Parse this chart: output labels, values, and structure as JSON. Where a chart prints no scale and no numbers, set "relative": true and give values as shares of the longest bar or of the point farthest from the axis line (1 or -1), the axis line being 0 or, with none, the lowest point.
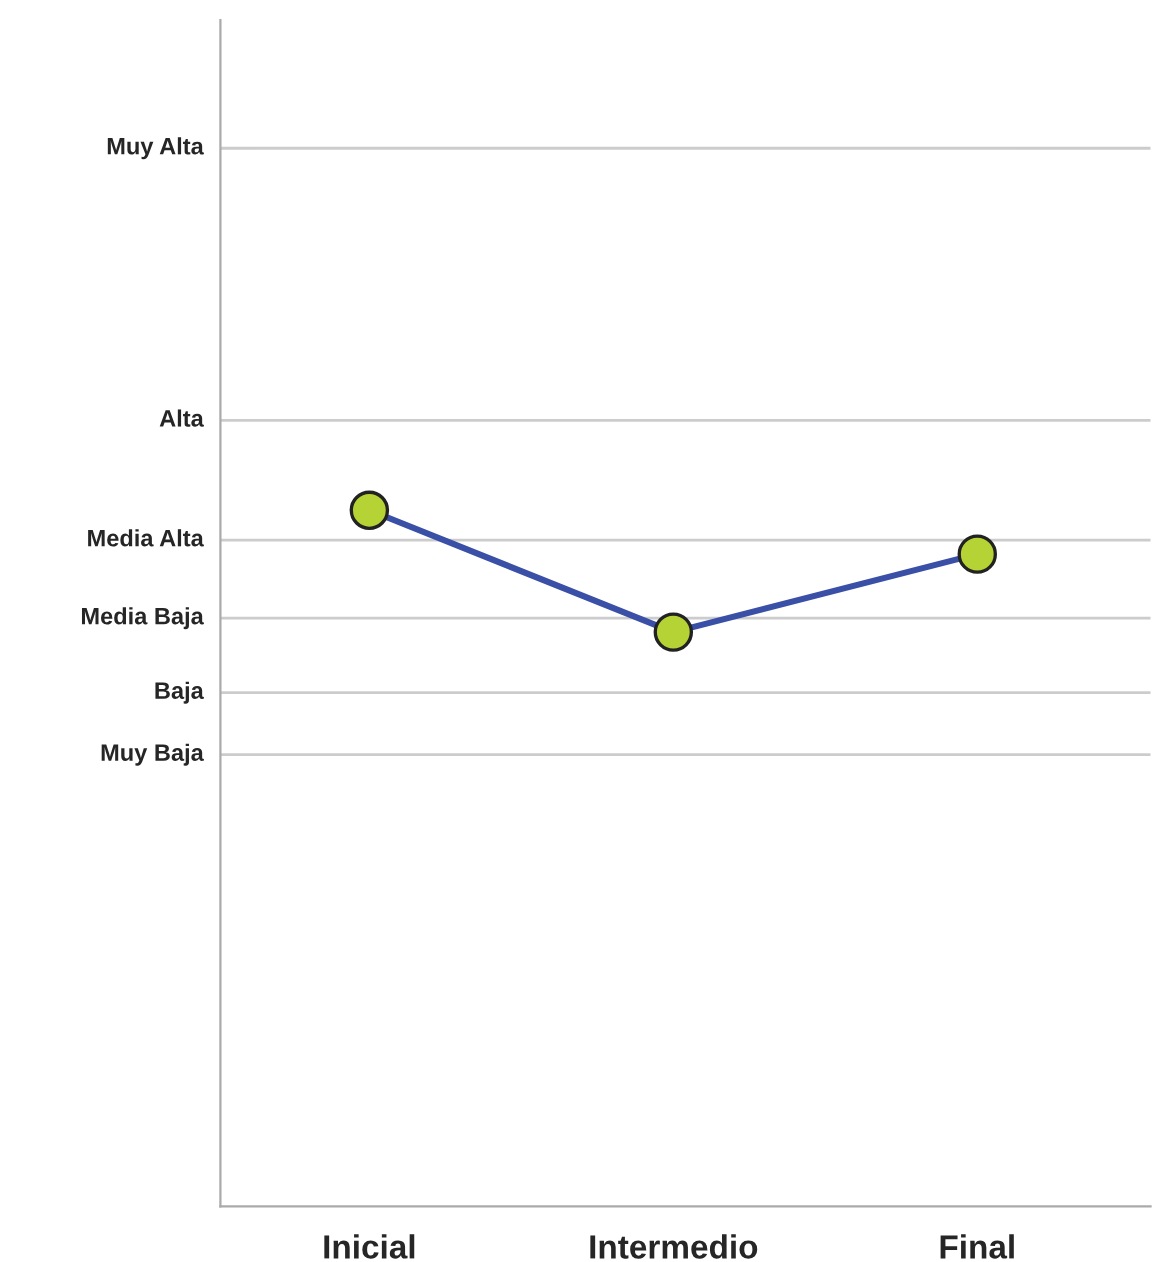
{
  "chart_data": {
    "type": "line",
    "relative": true,
    "categories": [
      "Inicial",
      "Intermedio",
      "Final"
    ],
    "series": [
      {
        "color": "#3a4fa6",
        "values": [
          1,
          0.825,
          0.937
        ]
      }
    ],
    "ref_lines": [
      {
        "axis": "y",
        "value": 0.649,
        "label": "Muy Baja",
        "color": "#cccccc"
      },
      {
        "axis": "y",
        "value": 0.738,
        "label": "Baja",
        "color": "#cccccc"
      },
      {
        "axis": "y",
        "value": 0.845,
        "label": "Media Baja",
        "color": "#cccccc"
      },
      {
        "axis": "y",
        "value": 0.957,
        "label": "Media Alta",
        "color": "#cccccc"
      },
      {
        "axis": "y",
        "value": 1.129,
        "label": "Alta",
        "color": "#cccccc"
      },
      {
        "axis": "y",
        "value": 1.52,
        "label": "Muy Alta",
        "color": "#cccccc"
      }
    ],
    "marker": "circle",
    "line_style": "solid"
  }
}
